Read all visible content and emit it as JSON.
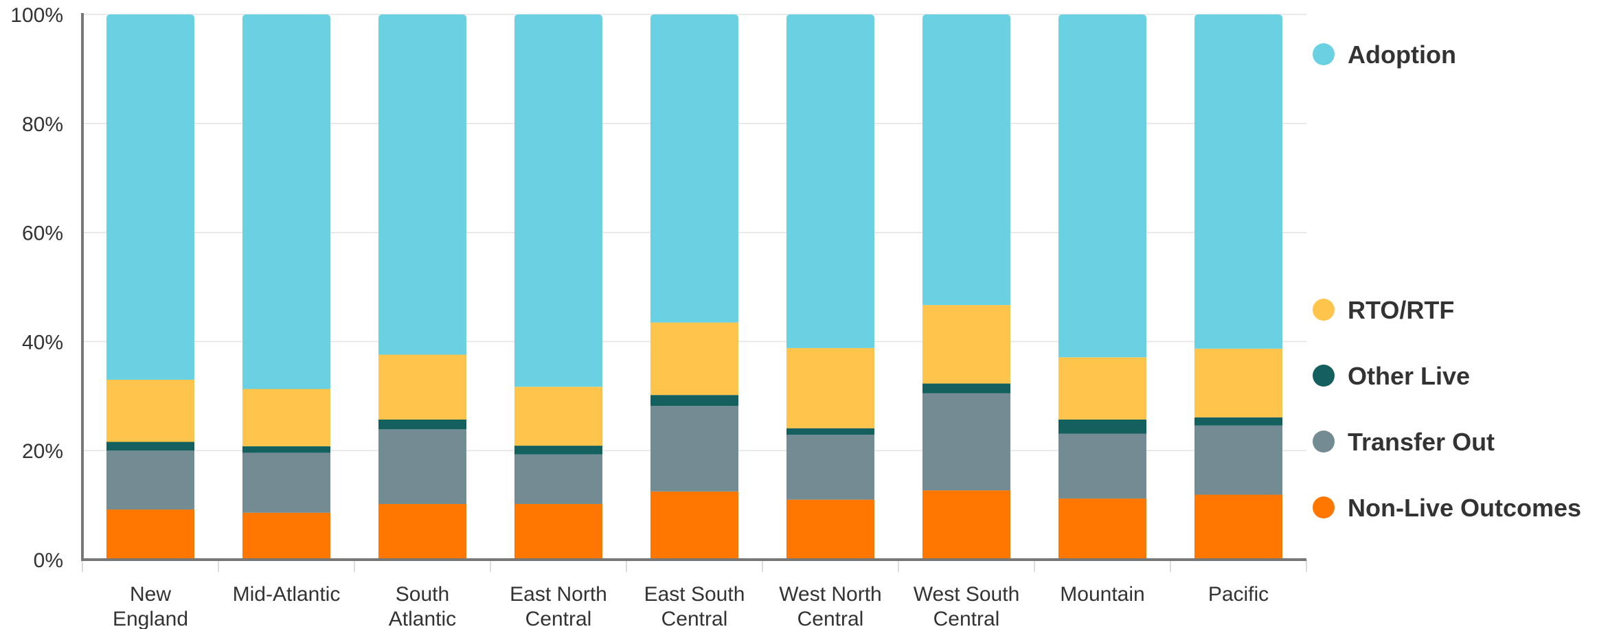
{
  "chart_data": {
    "type": "bar",
    "stacked": true,
    "normalized": true,
    "categories": [
      [
        "New",
        "England"
      ],
      [
        "Mid-Atlantic"
      ],
      [
        "South",
        "Atlantic"
      ],
      [
        "East North",
        "Central"
      ],
      [
        "East South",
        "Central"
      ],
      [
        "West North",
        "Central"
      ],
      [
        "West South",
        "Central"
      ],
      [
        "Mountain"
      ],
      [
        "Pacific"
      ]
    ],
    "series": [
      {
        "name": "Non-Live Outcomes",
        "color": "#FF7700",
        "values": [
          9.2,
          8.6,
          10.2,
          10.2,
          12.5,
          11.0,
          12.7,
          11.2,
          11.9
        ]
      },
      {
        "name": "Transfer Out",
        "color": "#738B92",
        "values": [
          10.8,
          11.0,
          13.7,
          9.1,
          15.7,
          11.9,
          17.8,
          11.9,
          12.7
        ]
      },
      {
        "name": "Other Live",
        "color": "#13605F",
        "values": [
          1.6,
          1.2,
          1.8,
          1.6,
          2.0,
          1.2,
          1.8,
          2.6,
          1.5
        ]
      },
      {
        "name": "RTO/RTF",
        "color": "#FFC44B",
        "values": [
          11.4,
          10.5,
          11.9,
          10.8,
          13.3,
          14.7,
          14.4,
          11.4,
          12.6
        ]
      },
      {
        "name": "Adoption",
        "color": "#69D1E2",
        "values": [
          67.0,
          68.7,
          62.4,
          68.3,
          56.5,
          61.2,
          53.3,
          62.9,
          61.3
        ]
      }
    ],
    "ylim": [
      0,
      100
    ],
    "yticks": [
      "0%",
      "20%",
      "40%",
      "60%",
      "80%",
      "100%"
    ],
    "grid": true,
    "legend_position": "right"
  }
}
